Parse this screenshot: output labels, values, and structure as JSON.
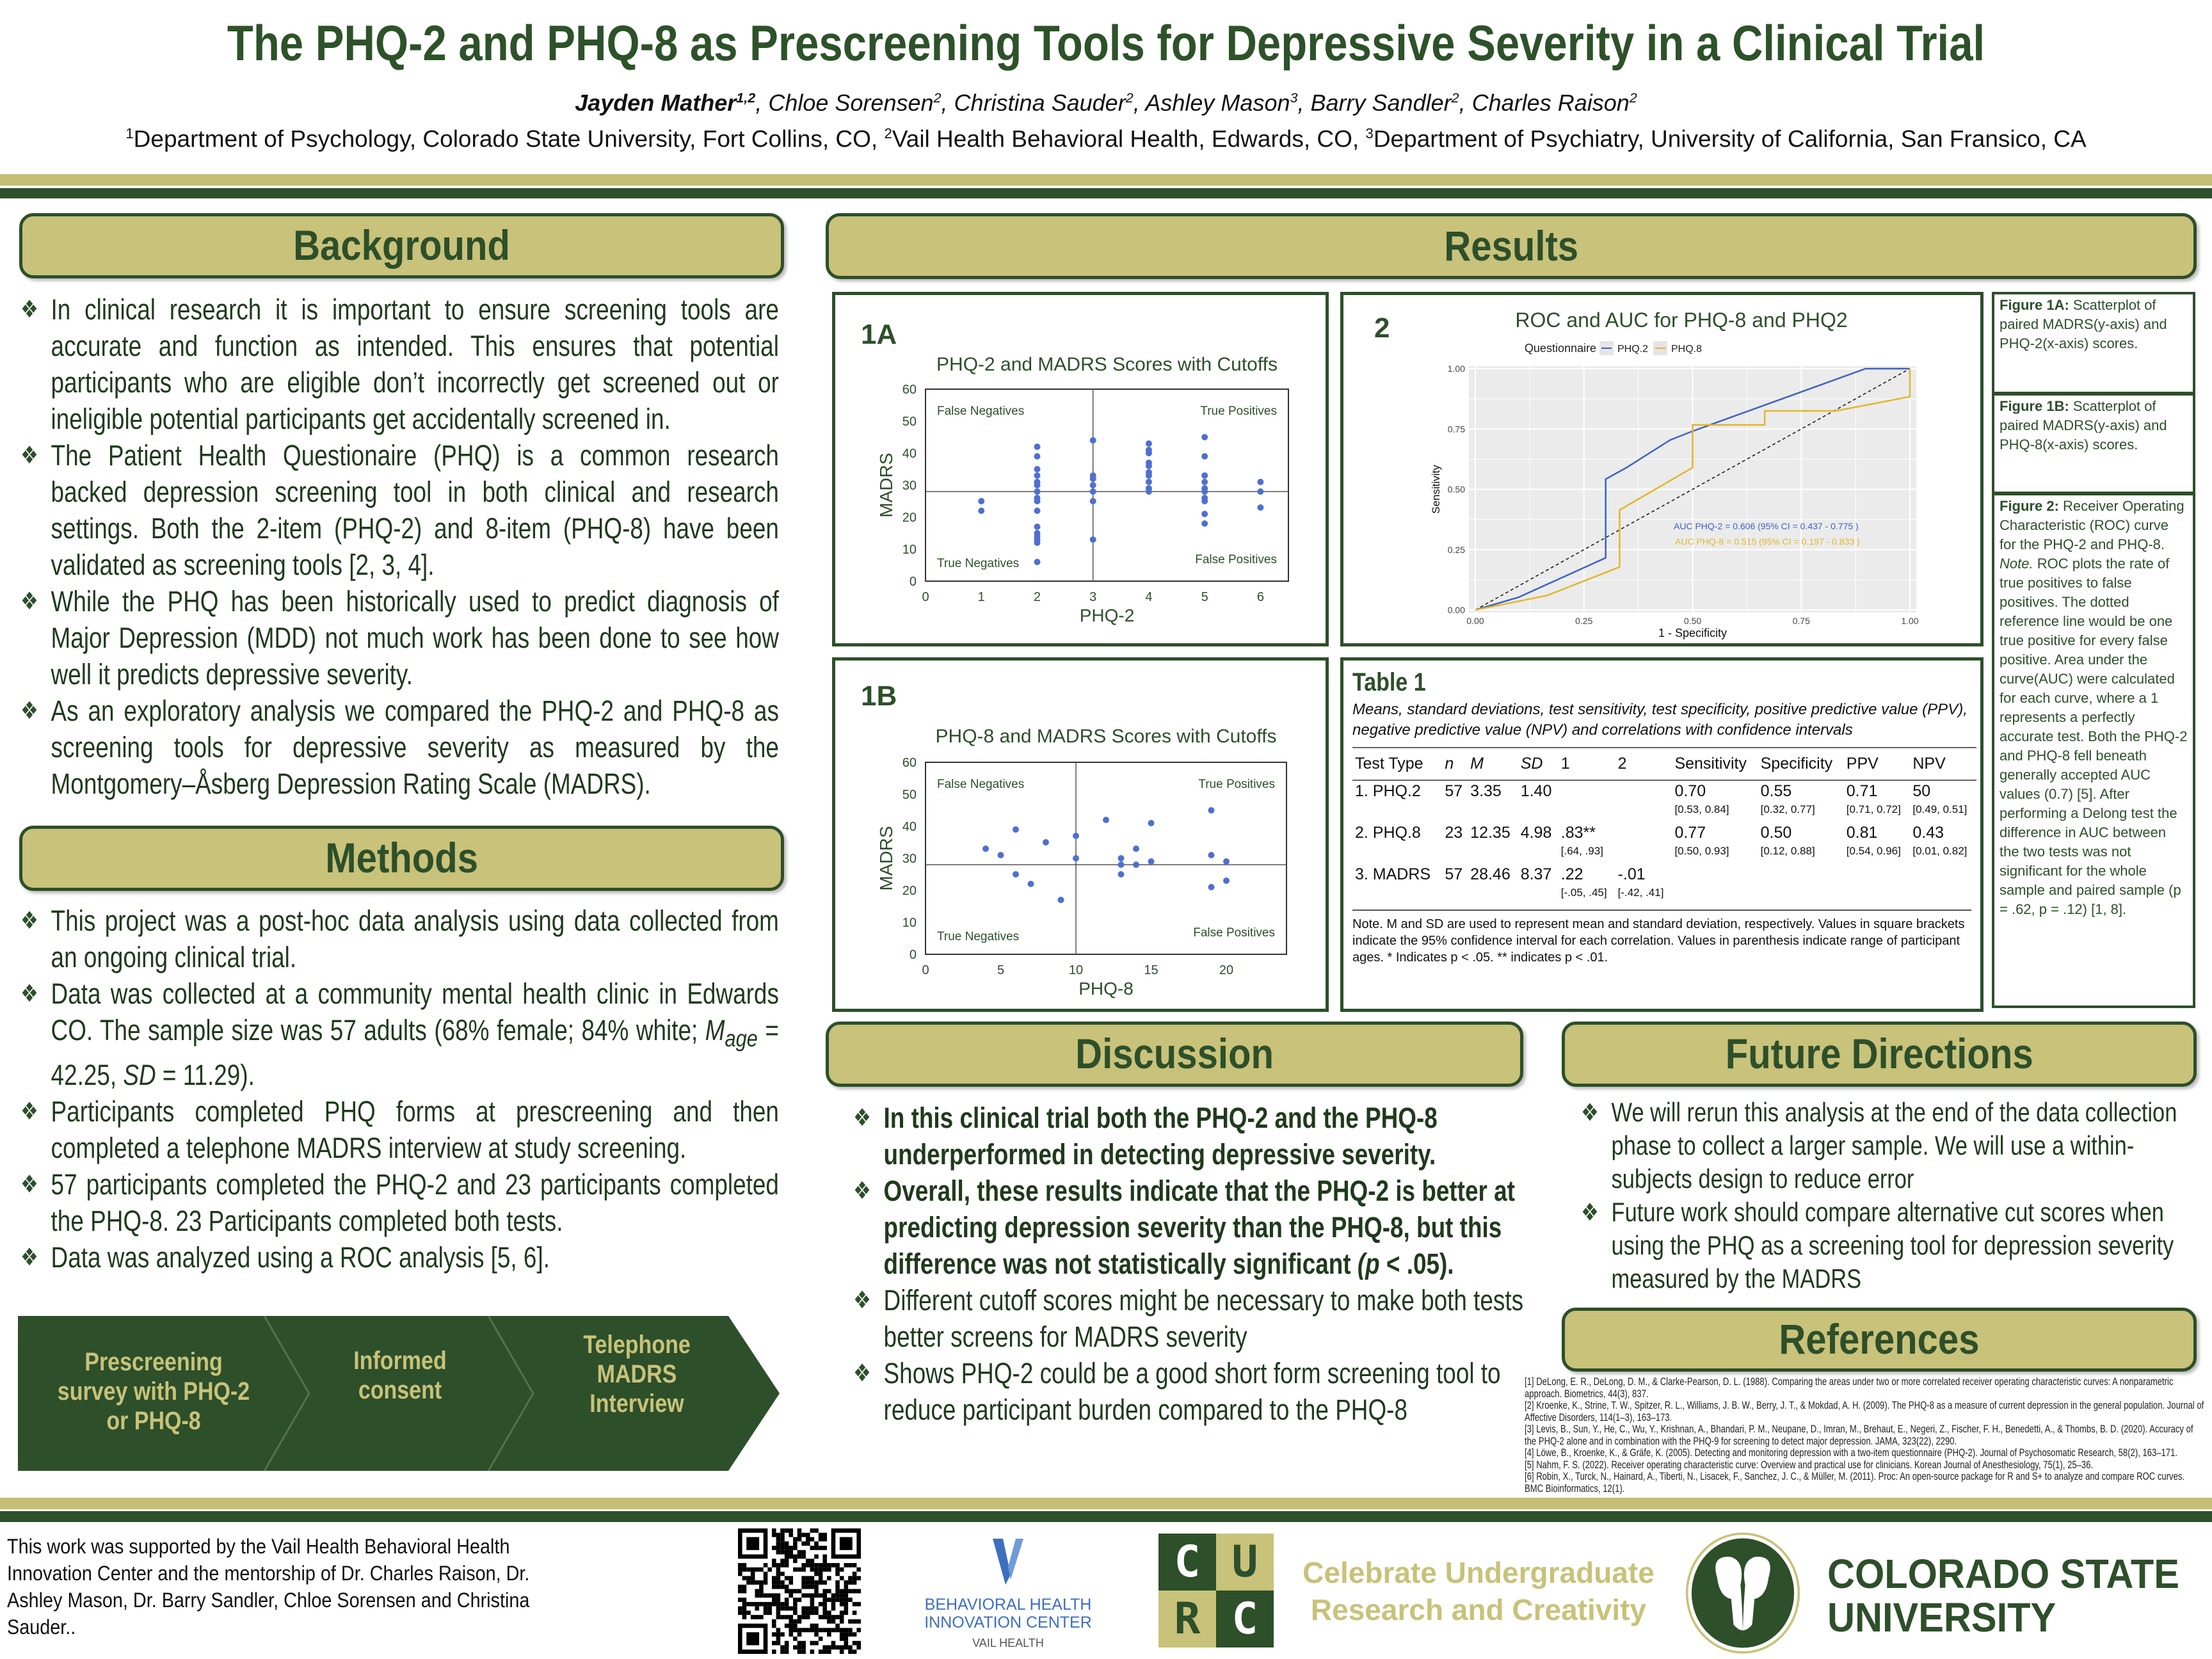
{
  "header": {
    "title": "The PHQ-2 and PHQ-8 as Prescreening Tools for Depressive Severity in a Clinical Trial",
    "authors": [
      {
        "name": "Jayden Mather",
        "sup": "1,2"
      },
      {
        "name": "Chloe Sorensen",
        "sup": "2"
      },
      {
        "name": "Christina Sauder",
        "sup": "2"
      },
      {
        "name": "Ashley Mason",
        "sup": "3"
      },
      {
        "name": "Barry Sandler",
        "sup": "2"
      },
      {
        "name": "Charles Raison",
        "sup": "2"
      }
    ],
    "affiliations": [
      {
        "sup": "1",
        "text": "Department of Psychology, Colorado State University, Fort Collins, CO, "
      },
      {
        "sup": "2",
        "text": "Vail Health Behavioral Health, Edwards, CO, "
      },
      {
        "sup": "3",
        "text": "Department of Psychiatry, University of California, San Fransico, CA"
      }
    ]
  },
  "colors": {
    "green": "#2d4f2a",
    "olive": "#c8c27a",
    "point_blue": "#4f6fcf",
    "roc_phq2": "#3d62c2",
    "roc_phq8": "#e1b72a",
    "panel_grey": "#ebebeb"
  },
  "background": {
    "heading": "Background",
    "bullets": [
      "In clinical research it is important to ensure screening tools are accurate and function as intended. This ensures that potential participants who are eligible don’t incorrectly get screened out or ineligible potential participants get accidentally screened in.",
      "The Patient Health Questionaire (PHQ) is a common research backed depression screening tool in both clinical and research settings. Both the 2-item (PHQ-2) and 8-item (PHQ-8) have been validated as screening tools [2, 3, 4].",
      "While the PHQ has been historically used to predict diagnosis of Major Depression (MDD) not much work has been done to see how well it predicts depressive severity.",
      "As an exploratory analysis we compared the PHQ-2 and PHQ-8 as screening tools for depressive severity as measured by the Montgomery–Åsberg Depression Rating Scale (MADRS)."
    ]
  },
  "methods": {
    "heading": "Methods",
    "bullet1": "This project was a post-hoc data analysis using data collected from an ongoing clinical trial.",
    "bullet2": {
      "a": "Data was collected at a community mental health clinic in Edwards CO. The sample size was 57 adults (68% female; 84% white; ",
      "m": "M",
      "sub": "age",
      "b": " = 42.25, ",
      "sd": "SD",
      "c": " = 11.29)."
    },
    "bullet3": "Participants completed PHQ forms at prescreening and then completed a telephone MADRS interview at study screening.",
    "bullet4": "57 participants completed the PHQ-2 and 23 participants completed the PHQ-8. 23 Participants completed both tests.",
    "bullet5": "Data was analyzed using a ROC analysis [5, 6].",
    "flow": [
      "Prescreening survey with PHQ-2 or PHQ-8",
      "Informed consent",
      "Telephone MADRS Interview"
    ]
  },
  "results": {
    "heading": "Results",
    "captions": {
      "fig1a_label": "Figure 1A:",
      "fig1a": " Scatterplot of paired MADRS(y-axis) and PHQ-2(x-axis) scores.",
      "fig1b_label": "Figure 1B:",
      "fig1b": " Scatterplot of paired MADRS(y-axis) and PHQ-8(x-axis) scores.",
      "fig2_label": "Figure 2:",
      "fig2": " Receiver Operating Characteristic (ROC) curve for the PHQ-2 and PHQ-8.",
      "note_label": "Note.",
      "note": " ROC plots the rate of true positives to false positives. The dotted reference line would be one true positive for every false positive. Area under the curve(AUC) were calculated for each curve, where a 1 represents a perfectly accurate test. Both the PHQ-2 and PHQ-8 fell beneath generally accepted AUC values (0.7) [5]. After performing a Delong test the difference in AUC between the two tests was not significant for the whole sample and paired sample (p = .62, p = .12) [1, 8]."
    },
    "table": {
      "label": "Table 1",
      "subtitle": "Means, standard deviations, test sensitivity, test specificity, positive predictive value (PPV), negative predictive value (NPV) and correlations with confidence intervals",
      "columns": [
        "Test Type",
        "n",
        "M",
        "SD",
        "1",
        "2",
        "Sensitivity",
        "Specificity",
        "PPV",
        "NPV"
      ],
      "rows": [
        {
          "cells": [
            "1. PHQ.2",
            "57",
            "3.35",
            "1.40",
            "",
            "",
            "0.70",
            "0.55",
            "0.71",
            "50"
          ],
          "ci": [
            "",
            "",
            "",
            "",
            "",
            "",
            "[0.53, 0.84]",
            "[0.32, 0.77]",
            "[0.71, 0.72]",
            "[0.49, 0.51]"
          ]
        },
        {
          "cells": [
            "2. PHQ.8",
            "23",
            "12.35",
            "4.98",
            ".83**",
            "",
            "0.77",
            "0.50",
            "0.81",
            "0.43"
          ],
          "ci": [
            "",
            "",
            "",
            "",
            "[.64, .93]",
            "",
            "[0.50, 0.93]",
            "[0.12, 0.88]",
            "[0.54, 0.96]",
            "[0.01, 0.82]"
          ]
        },
        {
          "cells": [
            "3. MADRS",
            "57",
            "28.46",
            "8.37",
            ".22",
            "-.01",
            "",
            "",
            "",
            ""
          ],
          "ci": [
            "",
            "",
            "",
            "",
            "[-.05, .45]",
            "[-.42, .41]",
            "",
            "",
            "",
            ""
          ]
        }
      ],
      "note": "Note. M and SD are used to represent mean and standard deviation, respectively. Values in square brackets indicate the 95% confidence interval for each correlation. Values in parenthesis indicate range of participant ages. * Indicates p < .05. ** indicates p < .01."
    }
  },
  "chart_data": [
    {
      "panel": "1A",
      "type": "scatter",
      "title": "PHQ-2 and MADRS Scores with Cutoffs",
      "xlabel": "PHQ-2",
      "ylabel": "MADRS",
      "xlim": [
        0,
        6.5
      ],
      "ylim": [
        0,
        60
      ],
      "xticks": [
        0,
        1,
        2,
        3,
        4,
        5,
        6
      ],
      "yticks": [
        0,
        10,
        20,
        30,
        40,
        50,
        60
      ],
      "grid": false,
      "cutoffs": {
        "x": 3,
        "y": 28
      },
      "quadrant_labels": {
        "top_left": "False Negatives",
        "top_right": "True Positives",
        "bottom_left": "True Negatives",
        "bottom_right": "False Positives"
      },
      "points": [
        [
          1,
          25
        ],
        [
          1,
          22
        ],
        [
          2,
          42
        ],
        [
          2,
          39
        ],
        [
          2,
          35
        ],
        [
          2,
          33
        ],
        [
          2,
          31
        ],
        [
          2,
          30
        ],
        [
          2,
          28
        ],
        [
          2,
          26
        ],
        [
          2,
          25
        ],
        [
          2,
          22
        ],
        [
          2,
          17
        ],
        [
          2,
          15
        ],
        [
          2,
          14
        ],
        [
          2,
          13
        ],
        [
          2,
          12
        ],
        [
          2,
          6
        ],
        [
          3,
          44
        ],
        [
          3,
          33
        ],
        [
          3,
          32
        ],
        [
          3,
          30
        ],
        [
          3,
          28
        ],
        [
          3,
          25
        ],
        [
          3,
          13
        ],
        [
          4,
          43
        ],
        [
          4,
          41
        ],
        [
          4,
          40
        ],
        [
          4,
          37
        ],
        [
          4,
          36
        ],
        [
          4,
          34
        ],
        [
          4,
          33
        ],
        [
          4,
          31
        ],
        [
          4,
          29
        ],
        [
          4,
          28
        ],
        [
          5,
          45
        ],
        [
          5,
          39
        ],
        [
          5,
          33
        ],
        [
          5,
          31
        ],
        [
          5,
          29
        ],
        [
          5,
          28
        ],
        [
          5,
          26
        ],
        [
          5,
          25
        ],
        [
          5,
          21
        ],
        [
          5,
          18
        ],
        [
          6,
          31
        ],
        [
          6,
          28
        ],
        [
          6,
          23
        ]
      ]
    },
    {
      "panel": "1B",
      "type": "scatter",
      "title": "PHQ-8 and MADRS Scores with Cutoffs",
      "xlabel": "PHQ-8",
      "ylabel": "MADRS",
      "xlim": [
        0,
        24
      ],
      "ylim": [
        0,
        60
      ],
      "xticks": [
        0,
        5,
        10,
        15,
        20
      ],
      "yticks": [
        0,
        10,
        20,
        30,
        40,
        50,
        60
      ],
      "grid": false,
      "cutoffs": {
        "x": 10,
        "y": 28
      },
      "quadrant_labels": {
        "top_left": "False Negatives",
        "top_right": "True Positives",
        "bottom_left": "True Negatives",
        "bottom_right": "False Positives"
      },
      "points": [
        [
          4,
          33
        ],
        [
          5,
          31
        ],
        [
          6,
          39
        ],
        [
          6,
          25
        ],
        [
          7,
          22
        ],
        [
          8,
          35
        ],
        [
          9,
          17
        ],
        [
          10,
          37
        ],
        [
          10,
          30
        ],
        [
          12,
          42
        ],
        [
          13,
          30
        ],
        [
          13,
          28
        ],
        [
          13,
          25
        ],
        [
          14,
          33
        ],
        [
          14,
          28
        ],
        [
          15,
          41
        ],
        [
          15,
          29
        ],
        [
          19,
          45
        ],
        [
          19,
          31
        ],
        [
          19,
          21
        ],
        [
          20,
          29
        ],
        [
          20,
          23
        ]
      ]
    },
    {
      "panel": "2",
      "type": "line",
      "title": "ROC and AUC for PHQ-8 and PHQ2",
      "xlabel": "1 - Specificity",
      "ylabel": "Sensitivity",
      "xlim": [
        0,
        1
      ],
      "ylim": [
        0,
        1
      ],
      "xticks": [
        "0.00",
        "0.25",
        "0.50",
        "0.75",
        "1.00"
      ],
      "yticks": [
        "0.00",
        "0.25",
        "0.50",
        "0.75",
        "1.00"
      ],
      "grid": true,
      "legend": {
        "title": "Questionnaire",
        "position": "top"
      },
      "reference_line": "dashed diagonal",
      "series": [
        {
          "name": "PHQ.2",
          "points": [
            [
              0,
              0
            ],
            [
              0.1,
              0.053
            ],
            [
              0.3,
              0.216
            ],
            [
              0.3,
              0.542
            ],
            [
              0.348,
              0.59
            ],
            [
              0.448,
              0.704
            ],
            [
              0.5,
              0.741
            ],
            [
              0.898,
              1
            ],
            [
              1,
              1
            ]
          ]
        },
        {
          "name": "PHQ.8",
          "points": [
            [
              0,
              0
            ],
            [
              0.165,
              0.06
            ],
            [
              0.332,
              0.178
            ],
            [
              0.332,
              0.414
            ],
            [
              0.5,
              0.59
            ],
            [
              0.5,
              0.767
            ],
            [
              0.666,
              0.767
            ],
            [
              0.666,
              0.825
            ],
            [
              0.83,
              0.825
            ],
            [
              1,
              0.884
            ],
            [
              1,
              1
            ]
          ]
        }
      ],
      "annotations": [
        "AUC PHQ-2 =  0.606  (95% CI =  0.437  -  0.775 )",
        "AUC PHQ-8 =  0.515 (95% CI =  0.197  -  0.833 )"
      ]
    }
  ],
  "discussion": {
    "heading": "Discussion",
    "b1": "In this clinical trial both the PHQ-2 and the PHQ-8 underperformed in detecting depressive severity.",
    "b2a": "Overall, these results indicate that the PHQ-2 is better at predicting depression severity than the PHQ-8, but this difference was not statistically significant ",
    "b2p": "(p",
    "b2b": " < .05).",
    "b3": "Different cutoff scores might be necessary to make both tests better screens for MADRS severity",
    "b4": "Shows PHQ-2 could be a good short form screening tool to reduce participant burden compared to the PHQ-8"
  },
  "future": {
    "heading": "Future Directions",
    "bullets": [
      "We will rerun this analysis at the end of the data collection phase to collect a larger sample. We will use a within-subjects design to reduce error",
      "Future work should compare alternative cut scores when using the PHQ as a screening tool for depression severity measured by the MADRS"
    ]
  },
  "references": {
    "heading": "References",
    "items": [
      "[1] DeLong, E. R., DeLong, D. M., & Clarke-Pearson, D. L. (1988). Comparing the areas under two or more correlated receiver operating characteristic curves: A nonparametric approach. Biometrics, 44(3), 837.",
      "[2] Kroenke, K., Strine, T. W., Spitzer, R. L., Williams, J. B. W., Berry, J. T., & Mokdad, A. H. (2009). The PHQ-8 as a measure of current depression in the general population. Journal of Affective Disorders, 114(1–3), 163–173.",
      "[3] Levis, B., Sun, Y., He, C., Wu, Y., Krishnan, A., Bhandari, P. M., Neupane, D., Imran, M., Brehaut, E., Negeri, Z., Fischer, F. H., Benedetti, A., & Thombs, B. D. (2020). Accuracy of the PHQ-2 alone and in combination with the PHQ-9 for screening to detect major depression. JAMA, 323(22), 2290.",
      "[4] Löwe, B., Kroenke, K., & Gräfe, K. (2005). Detecting and monitoring depression with a two-item questionnaire (PHQ-2). Journal of Psychosomatic Research, 58(2), 163–171.",
      "[5] Nahm, F. S. (2022). Receiver operating characteristic curve: Overview and practical use for clinicians. Korean Journal of Anesthesiology, 75(1), 25–36.",
      "[6] Robin, X., Turck, N., Hainard, A., Tiberti, N., Lisacek, F., Sanchez, J. C., & Müller, M. (2011). Proc: An open-source package for R and S+ to analyze and compare ROC curves. BMC Bioinformatics, 12(1)."
    ]
  },
  "footer": {
    "acknowledgement": "This work was supported by the Vail Health Behavioral Health Innovation Center and the mentorship of Dr. Charles Raison, Dr. Ashley Mason, Dr. Barry Sandler, Chloe Sorensen and Christina Sauder..",
    "logos": {
      "bhic_line1": "BEHAVIORAL HEALTH",
      "bhic_line2": "INNOVATION CENTER",
      "bhic_line3": "VAIL HEALTH",
      "curc_letters": [
        "C",
        "U",
        "R",
        "C"
      ],
      "curc_line1": "Celebrate Undergraduate",
      "curc_line2": "Research and Creativity",
      "csu_line1": "COLORADO STATE",
      "csu_line2": "UNIVERSITY"
    }
  }
}
